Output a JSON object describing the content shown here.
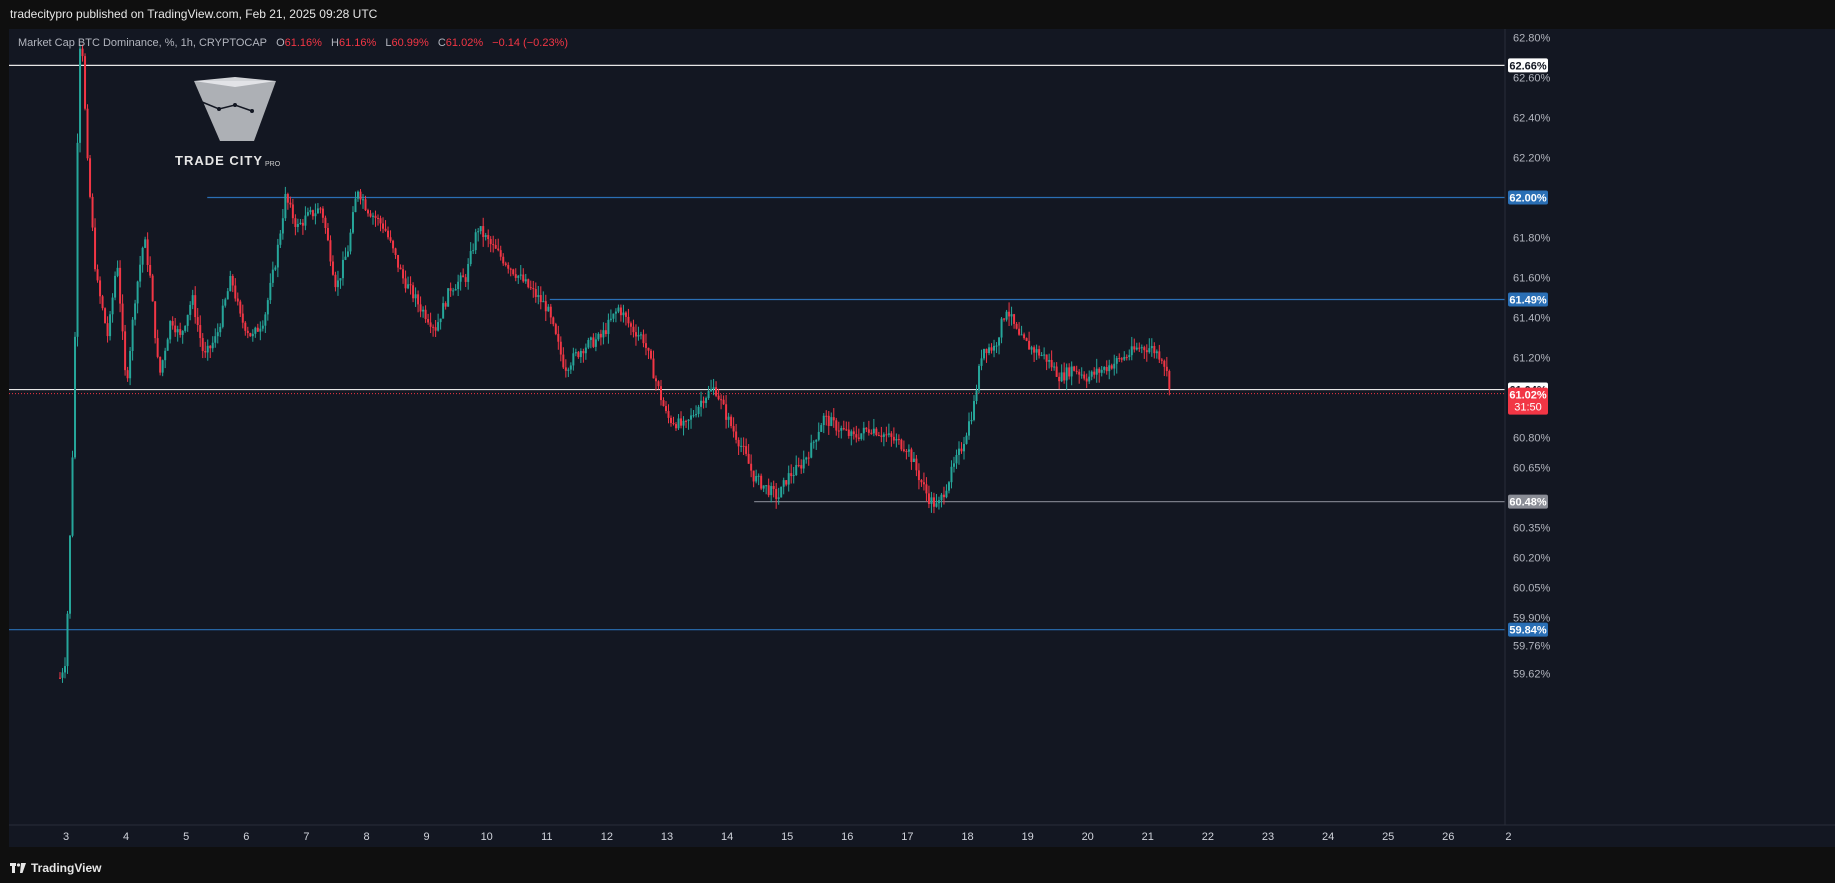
{
  "header": {
    "publisher_text": "tradecitypro published on TradingView.com, Feb 21, 2025 09:28 UTC"
  },
  "legend": {
    "title": "Market Cap BTC Dominance, %, 1h, CRYPTOCAP",
    "open_label": "O",
    "open": "61.16%",
    "high_label": "H",
    "high": "61.16%",
    "low_label": "L",
    "low": "60.99%",
    "close_label": "C",
    "close": "61.02%",
    "change": "−0.14 (−0.23%)"
  },
  "watermark": {
    "brand": "TRADE CITY",
    "sub": "PRO"
  },
  "footer": {
    "brand": "TradingView"
  },
  "colors": {
    "up": "#26a69a",
    "down": "#f23645",
    "hline_blue": "#2962ff",
    "level_blue": "#2a6fb5",
    "background": "#131722"
  },
  "chart_data": {
    "type": "candlestick",
    "symbol": "Market Cap BTC Dominance, %, 1h, CRYPTOCAP",
    "x_ticks": [
      "3",
      "4",
      "5",
      "6",
      "7",
      "8",
      "9",
      "10",
      "11",
      "12",
      "13",
      "14",
      "15",
      "16",
      "17",
      "18",
      "19",
      "20",
      "21",
      "22",
      "23",
      "24",
      "25",
      "26",
      "2"
    ],
    "y_ticks": [
      "62.80%",
      "62.60%",
      "62.40%",
      "62.20%",
      "61.80%",
      "61.60%",
      "61.40%",
      "61.20%",
      "60.80%",
      "60.65%",
      "60.35%",
      "60.20%",
      "60.05%",
      "59.90%",
      "59.76%",
      "59.62%"
    ],
    "horizontal_levels": [
      {
        "value": 62.66,
        "label": "62.66%",
        "style": "white"
      },
      {
        "value": 62.0,
        "label": "62.00%",
        "style": "blue",
        "start_day": 5.35
      },
      {
        "value": 61.49,
        "label": "61.49%",
        "style": "blue",
        "start_day": 11.05
      },
      {
        "value": 61.04,
        "label": "61.04%",
        "style": "white"
      },
      {
        "value": 60.48,
        "label": "60.48%",
        "style": "gray",
        "start_day": 14.45
      },
      {
        "value": 59.84,
        "label": "59.84%",
        "style": "blue"
      }
    ],
    "last_price": {
      "value": 61.02,
      "label": "61.02%",
      "countdown": "31:50"
    },
    "price_path": [
      [
        2.9,
        59.6
      ],
      [
        3.0,
        59.7
      ],
      [
        3.1,
        60.6
      ],
      [
        3.15,
        61.3
      ],
      [
        3.2,
        62.5
      ],
      [
        3.25,
        62.9
      ],
      [
        3.35,
        62.2
      ],
      [
        3.5,
        61.6
      ],
      [
        3.7,
        61.3
      ],
      [
        3.85,
        61.7
      ],
      [
        4.0,
        61.05
      ],
      [
        4.15,
        61.5
      ],
      [
        4.3,
        61.8
      ],
      [
        4.4,
        61.6
      ],
      [
        4.55,
        61.1
      ],
      [
        4.75,
        61.4
      ],
      [
        4.9,
        61.3
      ],
      [
        5.1,
        61.5
      ],
      [
        5.3,
        61.2
      ],
      [
        5.5,
        61.3
      ],
      [
        5.75,
        61.6
      ],
      [
        5.9,
        61.4
      ],
      [
        6.1,
        61.3
      ],
      [
        6.3,
        61.4
      ],
      [
        6.5,
        61.7
      ],
      [
        6.65,
        62.0
      ],
      [
        6.85,
        61.85
      ],
      [
        7.0,
        61.9
      ],
      [
        7.25,
        61.95
      ],
      [
        7.5,
        61.55
      ],
      [
        7.7,
        61.75
      ],
      [
        7.85,
        62.05
      ],
      [
        8.0,
        61.95
      ],
      [
        8.3,
        61.85
      ],
      [
        8.6,
        61.6
      ],
      [
        8.9,
        61.45
      ],
      [
        9.15,
        61.35
      ],
      [
        9.4,
        61.55
      ],
      [
        9.65,
        61.6
      ],
      [
        9.85,
        61.85
      ],
      [
        10.1,
        61.75
      ],
      [
        10.4,
        61.65
      ],
      [
        10.7,
        61.55
      ],
      [
        11.0,
        61.45
      ],
      [
        11.3,
        61.15
      ],
      [
        11.6,
        61.25
      ],
      [
        11.9,
        61.3
      ],
      [
        12.2,
        61.45
      ],
      [
        12.4,
        61.35
      ],
      [
        12.6,
        61.3
      ],
      [
        12.8,
        61.1
      ],
      [
        13.0,
        60.9
      ],
      [
        13.3,
        60.85
      ],
      [
        13.6,
        61.0
      ],
      [
        13.8,
        61.05
      ],
      [
        14.0,
        60.9
      ],
      [
        14.25,
        60.75
      ],
      [
        14.45,
        60.6
      ],
      [
        14.65,
        60.55
      ],
      [
        14.85,
        60.5
      ],
      [
        15.0,
        60.6
      ],
      [
        15.2,
        60.65
      ],
      [
        15.4,
        60.75
      ],
      [
        15.6,
        60.9
      ],
      [
        15.85,
        60.85
      ],
      [
        16.1,
        60.8
      ],
      [
        16.4,
        60.85
      ],
      [
        16.7,
        60.8
      ],
      [
        17.0,
        60.75
      ],
      [
        17.2,
        60.6
      ],
      [
        17.35,
        60.5
      ],
      [
        17.5,
        60.45
      ],
      [
        17.7,
        60.6
      ],
      [
        17.9,
        60.75
      ],
      [
        18.1,
        60.95
      ],
      [
        18.25,
        61.25
      ],
      [
        18.45,
        61.25
      ],
      [
        18.65,
        61.45
      ],
      [
        18.85,
        61.3
      ],
      [
        19.05,
        61.25
      ],
      [
        19.3,
        61.2
      ],
      [
        19.55,
        61.1
      ],
      [
        19.75,
        61.15
      ],
      [
        20.0,
        61.1
      ],
      [
        20.3,
        61.15
      ],
      [
        20.6,
        61.2
      ],
      [
        20.85,
        61.25
      ],
      [
        21.05,
        61.25
      ],
      [
        21.25,
        61.2
      ],
      [
        21.4,
        61.02
      ]
    ]
  }
}
